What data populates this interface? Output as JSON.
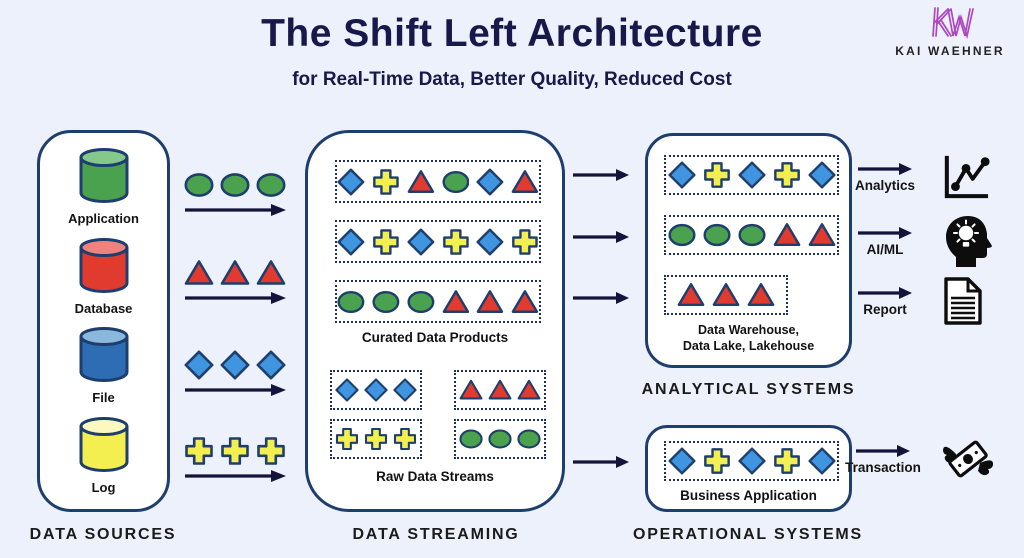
{
  "title": "The Shift Left Architecture",
  "subtitle": "for Real-Time Data, Better Quality, Reduced Cost",
  "logo": {
    "monogram": "KW",
    "name": "KAI WAEHNER"
  },
  "colors": {
    "background": "#edf1fb",
    "box_border": "#1e3e6e",
    "dotted_border": "#1e2f5e",
    "arrow": "#13133b",
    "title_text": "#18184a",
    "label_text": "#1b1b1b",
    "logo_purple": "#ad46c2",
    "shape_stroke": "#1e3e6e",
    "green": "#4ba24e",
    "red": "#e13b2f",
    "blue": "#4095e0",
    "yellow": "#f4ef50"
  },
  "data_sources": {
    "label": "DATA SOURCES",
    "items": [
      {
        "name": "Application",
        "color": "#4ba24e",
        "top": "#85c98a"
      },
      {
        "name": "Database",
        "color": "#e13b2f",
        "top": "#ee837b"
      },
      {
        "name": "File",
        "color": "#2e6cb3",
        "top": "#8ab7dc"
      },
      {
        "name": "Log",
        "color": "#f4ef50",
        "top": "#fbf9c0"
      }
    ]
  },
  "source_streams": [
    [
      "circle",
      "circle",
      "circle"
    ],
    [
      "triangle",
      "triangle",
      "triangle"
    ],
    [
      "diamond",
      "diamond",
      "diamond"
    ],
    [
      "cross",
      "cross",
      "cross"
    ]
  ],
  "data_streaming": {
    "label": "DATA STREAMING",
    "curated": {
      "label": "Curated Data Products",
      "rows": [
        [
          "diamond",
          "cross",
          "triangle",
          "circle",
          "diamond",
          "triangle"
        ],
        [
          "diamond",
          "cross",
          "diamond",
          "cross",
          "diamond",
          "cross"
        ],
        [
          "circle",
          "circle",
          "circle",
          "triangle",
          "triangle",
          "triangle"
        ]
      ]
    },
    "raw": {
      "label": "Raw Data Streams",
      "boxes": [
        [
          "diamond",
          "diamond",
          "diamond"
        ],
        [
          "triangle",
          "triangle",
          "triangle"
        ],
        [
          "cross",
          "cross",
          "cross"
        ],
        [
          "circle",
          "circle",
          "circle"
        ]
      ]
    }
  },
  "analytical": {
    "label": "ANALYTICAL SYSTEMS",
    "box_label_line1": "Data Warehouse,",
    "box_label_line2": "Data Lake, Lakehouse",
    "rows": [
      [
        "diamond",
        "cross",
        "diamond",
        "cross",
        "diamond"
      ],
      [
        "circle",
        "circle",
        "circle",
        "triangle",
        "triangle"
      ],
      [
        "triangle",
        "triangle",
        "triangle"
      ]
    ],
    "outputs": [
      {
        "label": "Analytics",
        "icon": "line-chart-icon"
      },
      {
        "label": "AI/ML",
        "icon": "ai-head-icon"
      },
      {
        "label": "Report",
        "icon": "report-document-icon"
      }
    ]
  },
  "operational": {
    "label": "OPERATIONAL SYSTEMS",
    "box_label": "Business Application",
    "row": [
      "diamond",
      "cross",
      "diamond",
      "cross",
      "diamond"
    ],
    "output": {
      "label": "Transaction",
      "icon": "flying-money-icon"
    }
  }
}
